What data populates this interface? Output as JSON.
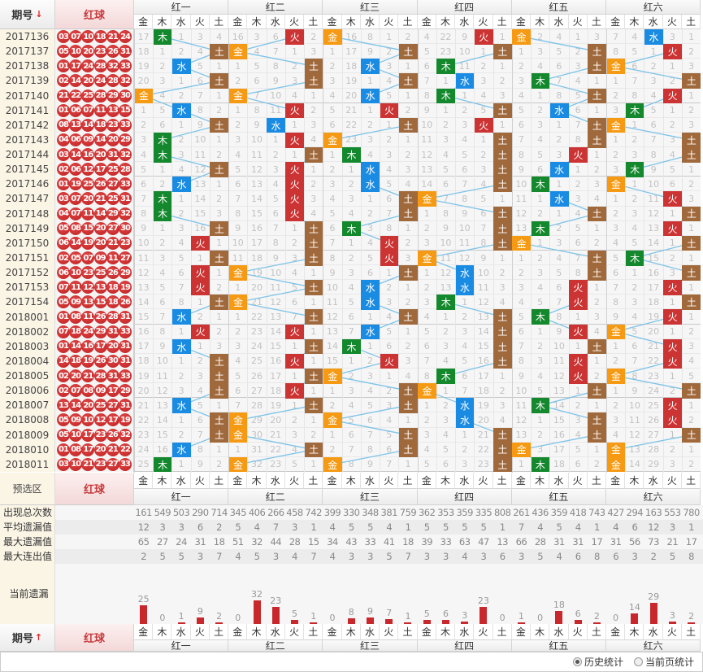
{
  "header": {
    "issue_label": "期号",
    "issue_sort_down": "↓",
    "issue_sort_up": "↑",
    "ball_label": "红球"
  },
  "groups": [
    "红一",
    "红二",
    "红三",
    "红四",
    "红五",
    "红六"
  ],
  "elements": [
    "金",
    "木",
    "水",
    "火",
    "土"
  ],
  "colors": {
    "金": "#f59a12",
    "木": "#13882c",
    "水": "#1a8be3",
    "火": "#cc3333",
    "土": "#a0693c",
    "line": "#7ec3e8"
  },
  "first_row_values": [
    [
      17,
      null,
      1,
      3,
      4
    ],
    [
      16,
      3,
      6,
      null,
      2
    ],
    [
      null,
      16,
      8,
      1,
      2
    ],
    [
      4,
      22,
      9,
      null,
      1
    ],
    [
      null,
      2,
      4,
      1,
      3
    ],
    [
      7,
      4,
      null,
      3,
      1
    ]
  ],
  "rows": [
    {
      "issue": "2017136",
      "balls": [
        "03",
        "07",
        "10",
        "18",
        "21",
        "24"
      ],
      "hits": [
        "木",
        "火",
        "金",
        "火",
        "金",
        "水"
      ]
    },
    {
      "issue": "2017137",
      "balls": [
        "05",
        "10",
        "20",
        "23",
        "26",
        "31"
      ],
      "hits": [
        "土",
        "金",
        "土",
        "土",
        "土",
        "火"
      ]
    },
    {
      "issue": "2017138",
      "balls": [
        "01",
        "17",
        "24",
        "28",
        "32",
        "33"
      ],
      "hits": [
        "水",
        "土",
        "水",
        "木",
        "土",
        "金"
      ]
    },
    {
      "issue": "2017139",
      "balls": [
        "02",
        "14",
        "20",
        "24",
        "28",
        "32"
      ],
      "hits": [
        "土",
        "土",
        "土",
        "水",
        "木",
        "土"
      ]
    },
    {
      "issue": "2017140",
      "balls": [
        "21",
        "22",
        "25",
        "28",
        "29",
        "30"
      ],
      "hits": [
        "金",
        "金",
        "水",
        "木",
        "土",
        "火"
      ]
    },
    {
      "issue": "2017141",
      "balls": [
        "01",
        "06",
        "07",
        "11",
        "13",
        "15"
      ],
      "hits": [
        "水",
        "火",
        "火",
        "土",
        "水",
        "木"
      ]
    },
    {
      "issue": "2017142",
      "balls": [
        "08",
        "13",
        "14",
        "18",
        "23",
        "33"
      ],
      "hits": [
        "土",
        "水",
        "土",
        "火",
        "土",
        "金"
      ]
    },
    {
      "issue": "2017143",
      "balls": [
        "04",
        "06",
        "09",
        "14",
        "20",
        "29"
      ],
      "hits": [
        "木",
        "火",
        "金",
        "土",
        "土",
        "土"
      ]
    },
    {
      "issue": "2017144",
      "balls": [
        "03",
        "14",
        "16",
        "20",
        "31",
        "32"
      ],
      "hits": [
        "木",
        "土",
        "木",
        "土",
        "火",
        "土"
      ]
    },
    {
      "issue": "2017145",
      "balls": [
        "02",
        "06",
        "12",
        "17",
        "25",
        "28"
      ],
      "hits": [
        "土",
        "火",
        "水",
        "土",
        "水",
        "木"
      ]
    },
    {
      "issue": "2017146",
      "balls": [
        "01",
        "19",
        "25",
        "26",
        "27",
        "33"
      ],
      "hits": [
        "水",
        "火",
        "水",
        "土",
        "木",
        "金"
      ]
    },
    {
      "issue": "2017147",
      "balls": [
        "03",
        "07",
        "20",
        "21",
        "25",
        "31"
      ],
      "hits": [
        "木",
        "火",
        "土",
        "金",
        "水",
        "火"
      ]
    },
    {
      "issue": "2017148",
      "balls": [
        "04",
        "07",
        "11",
        "14",
        "29",
        "32"
      ],
      "hits": [
        "木",
        "火",
        "土",
        "土",
        "土",
        "土"
      ]
    },
    {
      "issue": "2017149",
      "balls": [
        "05",
        "08",
        "15",
        "20",
        "27",
        "30"
      ],
      "hits": [
        "土",
        "土",
        "木",
        "土",
        "木",
        "火"
      ]
    },
    {
      "issue": "2017150",
      "balls": [
        "06",
        "14",
        "19",
        "20",
        "21",
        "23"
      ],
      "hits": [
        "火",
        "土",
        "火",
        "土",
        "金",
        "土"
      ]
    },
    {
      "issue": "2017151",
      "balls": [
        "02",
        "05",
        "07",
        "09",
        "11",
        "27"
      ],
      "hits": [
        "土",
        "土",
        "火",
        "金",
        "土",
        "木"
      ]
    },
    {
      "issue": "2017152",
      "balls": [
        "06",
        "10",
        "23",
        "25",
        "26",
        "29"
      ],
      "hits": [
        "火",
        "金",
        "土",
        "水",
        "土",
        "土"
      ]
    },
    {
      "issue": "2017153",
      "balls": [
        "07",
        "11",
        "12",
        "13",
        "18",
        "19"
      ],
      "hits": [
        "火",
        "土",
        "水",
        "水",
        "火",
        "火"
      ]
    },
    {
      "issue": "2017154",
      "balls": [
        "05",
        "09",
        "13",
        "15",
        "18",
        "26"
      ],
      "hits": [
        "土",
        "金",
        "水",
        "木",
        "火",
        "土"
      ]
    },
    {
      "issue": "2018001",
      "balls": [
        "01",
        "08",
        "11",
        "26",
        "28",
        "31"
      ],
      "hits": [
        "水",
        "土",
        "土",
        "土",
        "木",
        "火"
      ]
    },
    {
      "issue": "2018002",
      "balls": [
        "07",
        "18",
        "24",
        "29",
        "31",
        "33"
      ],
      "hits": [
        "火",
        "火",
        "水",
        "土",
        "火",
        "金"
      ]
    },
    {
      "issue": "2018003",
      "balls": [
        "01",
        "14",
        "16",
        "17",
        "20",
        "31"
      ],
      "hits": [
        "水",
        "土",
        "木",
        "土",
        "土",
        "火"
      ]
    },
    {
      "issue": "2018004",
      "balls": [
        "14",
        "18",
        "19",
        "26",
        "30",
        "31"
      ],
      "hits": [
        "土",
        "火",
        "火",
        "土",
        "火",
        "火"
      ]
    },
    {
      "issue": "2018005",
      "balls": [
        "02",
        "20",
        "21",
        "28",
        "31",
        "33"
      ],
      "hits": [
        "土",
        "土",
        "金",
        "木",
        "火",
        "金"
      ]
    },
    {
      "issue": "2018006",
      "balls": [
        "02",
        "07",
        "08",
        "09",
        "17",
        "29"
      ],
      "hits": [
        "土",
        "火",
        "土",
        "金",
        "土",
        "土"
      ]
    },
    {
      "issue": "2018007",
      "balls": [
        "13",
        "14",
        "20",
        "25",
        "27",
        "31"
      ],
      "hits": [
        "水",
        "土",
        "土",
        "水",
        "木",
        "火"
      ]
    },
    {
      "issue": "2018008",
      "balls": [
        "05",
        "09",
        "10",
        "12",
        "17",
        "19"
      ],
      "hits": [
        "土",
        "金",
        "金",
        "水",
        "土",
        "火"
      ]
    },
    {
      "issue": "2018009",
      "balls": [
        "05",
        "10",
        "17",
        "23",
        "26",
        "32"
      ],
      "hits": [
        "土",
        "金",
        "土",
        "土",
        "土",
        "土"
      ]
    },
    {
      "issue": "2018010",
      "balls": [
        "01",
        "08",
        "17",
        "20",
        "21",
        "22"
      ],
      "hits": [
        "水",
        "土",
        "土",
        "土",
        "金",
        "金"
      ]
    },
    {
      "issue": "2018011",
      "balls": [
        "03",
        "10",
        "21",
        "23",
        "27",
        "33"
      ],
      "hits": [
        "木",
        "金",
        "金",
        "土",
        "木",
        "金"
      ]
    }
  ],
  "preselect": {
    "label": "预选区",
    "ball_label": "红球"
  },
  "stats": [
    {
      "label": "出现总次数",
      "values": [
        161,
        549,
        503,
        290,
        714,
        345,
        406,
        266,
        458,
        742,
        399,
        330,
        348,
        381,
        759,
        362,
        353,
        359,
        335,
        808,
        261,
        436,
        359,
        418,
        743,
        427,
        294,
        163,
        553,
        780
      ]
    },
    {
      "label": "平均遗漏值",
      "values": [
        12,
        3,
        3,
        6,
        2,
        5,
        4,
        7,
        3,
        1,
        4,
        5,
        5,
        4,
        1,
        5,
        5,
        5,
        5,
        1,
        7,
        4,
        5,
        4,
        1,
        4,
        6,
        12,
        3,
        1
      ]
    },
    {
      "label": "最大遗漏值",
      "values": [
        65,
        27,
        24,
        31,
        18,
        51,
        32,
        44,
        28,
        15,
        34,
        43,
        33,
        41,
        18,
        39,
        33,
        63,
        47,
        13,
        66,
        28,
        31,
        31,
        17,
        31,
        56,
        73,
        21,
        17
      ]
    },
    {
      "label": "最大连出值",
      "values": [
        2,
        5,
        5,
        3,
        7,
        4,
        5,
        3,
        4,
        7,
        4,
        3,
        3,
        5,
        7,
        3,
        3,
        4,
        3,
        6,
        3,
        5,
        4,
        6,
        8,
        6,
        3,
        2,
        5,
        8
      ]
    }
  ],
  "current_omission": {
    "label": "当前遗漏",
    "values": [
      25,
      0,
      1,
      9,
      2,
      0,
      32,
      23,
      5,
      1,
      0,
      8,
      9,
      7,
      1,
      5,
      6,
      3,
      23,
      0,
      1,
      0,
      18,
      6,
      2,
      0,
      14,
      29,
      3,
      2
    ]
  },
  "footer": {
    "issue_label": "期号",
    "ball_label": "红球"
  },
  "options": [
    {
      "label": "历史统计",
      "selected": true
    },
    {
      "label": "当前页统计",
      "selected": false
    }
  ]
}
